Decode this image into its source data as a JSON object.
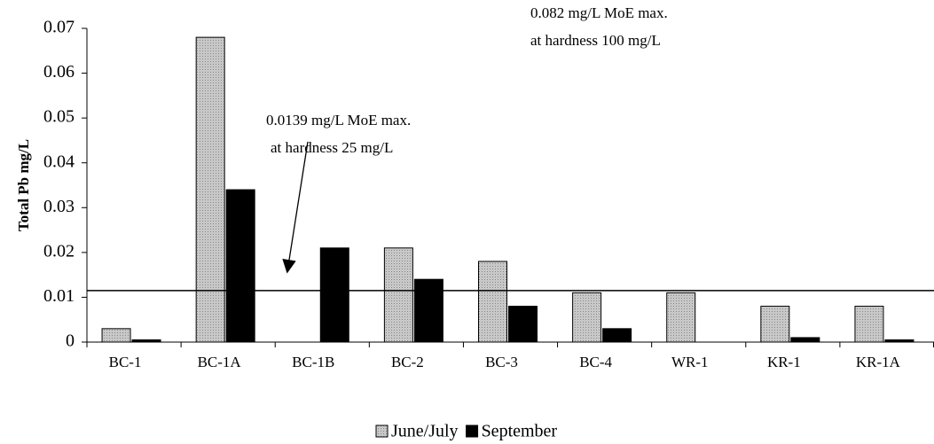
{
  "chart_data": {
    "type": "bar",
    "y_label": "Total Pb mg/L",
    "categories": [
      "BC-1",
      "BC-1A",
      "BC-1B",
      "BC-2",
      "BC-3",
      "BC-4",
      "WR-1",
      "KR-1",
      "KR-1A"
    ],
    "series": [
      {
        "name": "June/July",
        "color": "#c8c8c8",
        "values": [
          0.003,
          0.068,
          null,
          0.021,
          0.018,
          0.011,
          0.011,
          0.008,
          0.008
        ]
      },
      {
        "name": "September",
        "color": "#000000",
        "values": [
          0.0005,
          0.034,
          0.021,
          0.014,
          0.008,
          0.003,
          null,
          0.001,
          0.0005
        ]
      }
    ],
    "ylim": [
      0,
      0.07
    ],
    "yticks": [
      0,
      0.01,
      0.02,
      0.03,
      0.04,
      0.05,
      0.06,
      0.07
    ],
    "reference_line": 0.0115,
    "annotations": [
      "0.0139 mg/L MoE max.",
      "at hardness 25 mg/L",
      "0.082 mg/L MoE max.",
      "at hardness 100 mg/L"
    ],
    "legend": "bottom"
  }
}
